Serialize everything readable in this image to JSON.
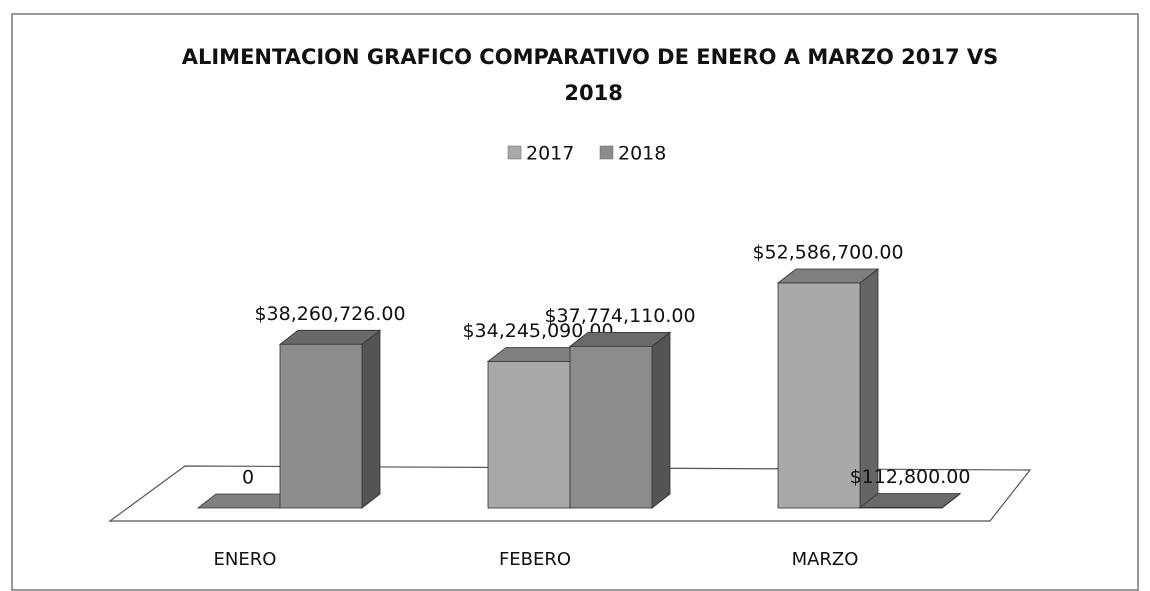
{
  "chart_data": {
    "type": "bar3d",
    "title": "ALIMENTACION GRAFICO COMPARATIVO DE ENERO A MARZO 2017 VS 2018",
    "categories": [
      "ENERO",
      "FEBERO",
      "MARZO"
    ],
    "series": [
      {
        "name": "2017",
        "color": "#a9a9a9",
        "values": [
          0,
          34245090,
          52586700
        ],
        "value_labels": [
          "0",
          "$34,245,090.00",
          "$52,586,700.00"
        ]
      },
      {
        "name": "2018",
        "color": "#8c8c8c",
        "values": [
          38260726,
          37774110,
          112800
        ],
        "value_labels": [
          "$38,260,726.00",
          "$37,774,110.00",
          "$112,800.00"
        ]
      }
    ],
    "legend": "top"
  }
}
